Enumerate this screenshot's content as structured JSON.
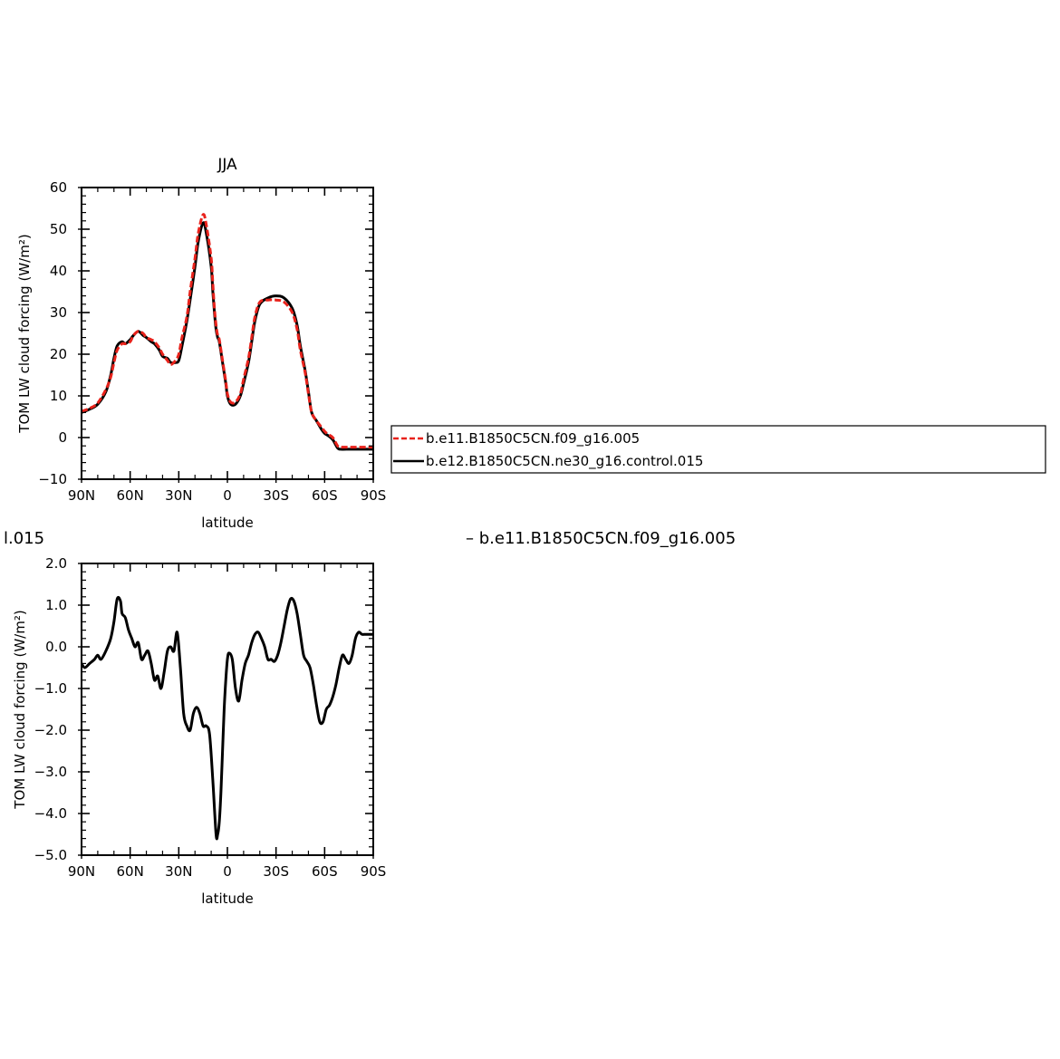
{
  "fragments": {
    "left": "l.015",
    "right": "– b.e11.B1850C5CN.f09_g16.005"
  },
  "legend": {
    "items": [
      {
        "label": "b.e11.B1850C5CN.f09_g16.005",
        "color": "#e8221b",
        "dash": true
      },
      {
        "label": "b.e12.B1850C5CN.ne30_g16.control.015",
        "color": "#000000",
        "dash": false
      }
    ]
  },
  "chart_data": [
    {
      "type": "line",
      "title": "JJA",
      "xlabel": "latitude",
      "ylabel": "TOM LW cloud forcing (W/m²)",
      "xlim": [
        -90,
        90
      ],
      "ylim": [
        -10,
        60
      ],
      "xticks": [
        -90,
        -60,
        -30,
        0,
        30,
        60,
        90
      ],
      "xtick_labels": [
        "90N",
        "60N",
        "30N",
        "0",
        "30S",
        "60S",
        "90S"
      ],
      "yticks": [
        -10,
        0,
        10,
        20,
        30,
        40,
        50,
        60
      ],
      "ytick_labels": [
        "−10",
        "0",
        "10",
        "20",
        "30",
        "40",
        "50",
        "60"
      ],
      "legend_position": "right",
      "series": [
        {
          "name": "b.e12.B1850C5CN.ne30_g16.control.015",
          "color": "#000000",
          "dash": false,
          "x": [
            -90,
            -85,
            -80,
            -75,
            -72,
            -70,
            -68,
            -65,
            -63,
            -60,
            -58,
            -55,
            -52,
            -50,
            -47,
            -45,
            -42,
            -40,
            -37,
            -35,
            -32,
            -30,
            -28,
            -25,
            -23,
            -20,
            -18,
            -15,
            -13,
            -10,
            -9,
            -8,
            -7,
            -6,
            -5,
            -3,
            -1,
            0,
            2,
            5,
            8,
            10,
            13,
            15,
            17,
            20,
            25,
            30,
            35,
            40,
            43,
            45,
            48,
            50,
            52,
            55,
            58,
            60,
            62,
            65,
            68,
            70,
            75,
            80,
            85,
            88,
            90
          ],
          "y": [
            6,
            6.8,
            8,
            11,
            15,
            19,
            22,
            23,
            22.5,
            23.5,
            24.5,
            25.5,
            24.5,
            24,
            23,
            22.5,
            21,
            19.5,
            19,
            18,
            18,
            18.5,
            22,
            28,
            33,
            41,
            47,
            51.5,
            49,
            41,
            35,
            30,
            26,
            24,
            23,
            18,
            13,
            10,
            8,
            8,
            10,
            13,
            18,
            23,
            28,
            32,
            33.5,
            34,
            33.5,
            31,
            27,
            22,
            16,
            11,
            6,
            4,
            2,
            1,
            0.5,
            -0.5,
            -2.5,
            -2.8,
            -2.8,
            -2.8,
            -2.8,
            -2.8,
            -2.8
          ]
        },
        {
          "name": "b.e11.B1850C5CN.f09_g16.005",
          "color": "#e8221b",
          "dash": true,
          "x": [
            -90,
            -85,
            -80,
            -75,
            -72,
            -70,
            -68,
            -65,
            -63,
            -60,
            -58,
            -55,
            -52,
            -50,
            -47,
            -45,
            -42,
            -40,
            -37,
            -35,
            -32,
            -30,
            -28,
            -25,
            -23,
            -20,
            -18,
            -15,
            -13,
            -10,
            -9,
            -8,
            -7,
            -6,
            -5,
            -3,
            -1,
            0,
            2,
            5,
            8,
            10,
            13,
            15,
            17,
            20,
            25,
            30,
            35,
            40,
            43,
            45,
            48,
            50,
            52,
            55,
            58,
            60,
            62,
            65,
            68,
            70,
            75,
            80,
            85,
            88,
            90
          ],
          "y": [
            6.3,
            7,
            8.3,
            11.5,
            14.5,
            18,
            21,
            22.5,
            22.5,
            23,
            24.5,
            25.5,
            25,
            24,
            23.5,
            23,
            21.5,
            20,
            18.5,
            17.5,
            18.5,
            20,
            24,
            29,
            35,
            43,
            49,
            53.5,
            51,
            43,
            37,
            31,
            27,
            24.5,
            23.5,
            18.5,
            13.5,
            10.5,
            8.5,
            8.5,
            10.5,
            14,
            19,
            24,
            29,
            32.5,
            33,
            33,
            32.5,
            30,
            26,
            21,
            15.5,
            10.5,
            6,
            4,
            2.5,
            1.5,
            0.8,
            0,
            -2,
            -2.3,
            -2.3,
            -2.3,
            -2.3,
            -2.3,
            -2.3
          ]
        }
      ]
    },
    {
      "type": "line",
      "title": "",
      "xlabel": "latitude",
      "ylabel": "TOM LW cloud forcing (W/m²)",
      "xlim": [
        -90,
        90
      ],
      "ylim": [
        -5.0,
        2.0
      ],
      "xticks": [
        -90,
        -60,
        -30,
        0,
        30,
        60,
        90
      ],
      "xtick_labels": [
        "90N",
        "60N",
        "30N",
        "0",
        "30S",
        "60S",
        "90S"
      ],
      "yticks": [
        -5,
        -4,
        -3,
        -2,
        -1,
        0,
        1,
        2
      ],
      "ytick_labels": [
        "−5.0",
        "−4.0",
        "−3.0",
        "−2.0",
        "−1.0",
        "0.0",
        "1.0",
        "2.0"
      ],
      "series": [
        {
          "color": "#000000",
          "dash": false,
          "x": [
            -90,
            -88,
            -85,
            -82,
            -80,
            -78,
            -75,
            -72,
            -70,
            -68,
            -66,
            -65,
            -63,
            -61,
            -59,
            -57,
            -55,
            -53,
            -51,
            -49,
            -47,
            -45,
            -43,
            -41,
            -39,
            -37,
            -35,
            -33,
            -31,
            -29,
            -27,
            -25,
            -23,
            -21,
            -19,
            -17,
            -15,
            -13,
            -11,
            -9,
            -7,
            -6,
            -5,
            -4,
            -3,
            -2,
            -1,
            0,
            1,
            3,
            5,
            7,
            9,
            11,
            13,
            15,
            17,
            19,
            21,
            23,
            25,
            27,
            29,
            31,
            33,
            35,
            37,
            39,
            41,
            43,
            45,
            47,
            49,
            51,
            53,
            55,
            57,
            59,
            61,
            63,
            65,
            67,
            69,
            71,
            73,
            75,
            77,
            79,
            81,
            83,
            85,
            87,
            89,
            90
          ],
          "y": [
            -0.4,
            -0.5,
            -0.4,
            -0.3,
            -0.2,
            -0.3,
            -0.1,
            0.2,
            0.6,
            1.15,
            1.1,
            0.8,
            0.7,
            0.4,
            0.2,
            0.0,
            0.1,
            -0.3,
            -0.2,
            -0.1,
            -0.4,
            -0.8,
            -0.7,
            -1.0,
            -0.6,
            -0.1,
            0.0,
            -0.1,
            0.35,
            -0.5,
            -1.6,
            -1.9,
            -2.0,
            -1.6,
            -1.45,
            -1.6,
            -1.9,
            -1.9,
            -2.1,
            -3.2,
            -4.5,
            -4.5,
            -4.2,
            -3.5,
            -2.5,
            -1.5,
            -0.8,
            -0.3,
            -0.15,
            -0.3,
            -1.0,
            -1.3,
            -0.8,
            -0.4,
            -0.2,
            0.1,
            0.3,
            0.35,
            0.2,
            0.0,
            -0.3,
            -0.3,
            -0.35,
            -0.2,
            0.1,
            0.5,
            0.9,
            1.15,
            1.1,
            0.8,
            0.3,
            -0.2,
            -0.35,
            -0.5,
            -0.9,
            -1.4,
            -1.8,
            -1.8,
            -1.5,
            -1.4,
            -1.2,
            -0.9,
            -0.5,
            -0.2,
            -0.3,
            -0.4,
            -0.2,
            0.2,
            0.35,
            0.3,
            0.3,
            0.3,
            0.3,
            0.3
          ]
        }
      ]
    }
  ]
}
